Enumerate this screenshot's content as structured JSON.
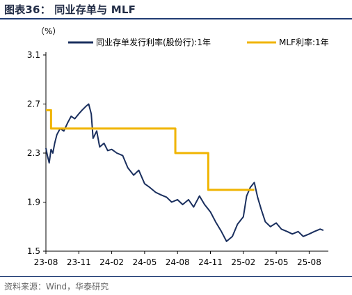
{
  "figure": {
    "title": "图表36： 同业存单与 MLF",
    "source": "资料来源：Wind，华泰研究"
  },
  "chart_data": {
    "type": "line",
    "unit_label": "（%）",
    "ylim": [
      1.5,
      3.1
    ],
    "yticks": [
      "3.1",
      "2.7",
      "2.3",
      "1.9",
      "1.5"
    ],
    "xticks": [
      "23-08",
      "23-11",
      "24-02",
      "24-05",
      "24-08",
      "24-11",
      "25-02",
      "25-05",
      "25-08"
    ],
    "legend_position": "top",
    "grid": false,
    "series": [
      {
        "name": "同业存单发行利率(股份行):1年",
        "color": "#1a2f5e",
        "style": "line",
        "values": [
          [
            "23-08",
            2.34
          ],
          [
            "23-08-05",
            2.28
          ],
          [
            "23-08-10",
            2.22
          ],
          [
            "23-08-15",
            2.33
          ],
          [
            "23-08-20",
            2.3
          ],
          [
            "23-08-25",
            2.38
          ],
          [
            "23-09-01",
            2.45
          ],
          [
            "23-09-10",
            2.5
          ],
          [
            "23-09-20",
            2.48
          ],
          [
            "23-10-01",
            2.55
          ],
          [
            "23-10-10",
            2.6
          ],
          [
            "23-10-20",
            2.58
          ],
          [
            "23-11",
            2.62
          ],
          [
            "23-11-10",
            2.65
          ],
          [
            "23-11-20",
            2.68
          ],
          [
            "23-11-28",
            2.7
          ],
          [
            "23-12-05",
            2.62
          ],
          [
            "23-12-10",
            2.42
          ],
          [
            "23-12-20",
            2.48
          ],
          [
            "23-12-28",
            2.35
          ],
          [
            "24-01-10",
            2.38
          ],
          [
            "24-01-20",
            2.32
          ],
          [
            "24-02",
            2.33
          ],
          [
            "24-02-15",
            2.3
          ],
          [
            "24-03-01",
            2.28
          ],
          [
            "24-03-15",
            2.18
          ],
          [
            "24-04-01",
            2.12
          ],
          [
            "24-04-15",
            2.16
          ],
          [
            "24-05",
            2.05
          ],
          [
            "24-05-15",
            2.02
          ],
          [
            "24-06-01",
            1.98
          ],
          [
            "24-06-15",
            1.96
          ],
          [
            "24-07-01",
            1.94
          ],
          [
            "24-07-15",
            1.9
          ],
          [
            "24-08",
            1.92
          ],
          [
            "24-08-15",
            1.88
          ],
          [
            "24-09-01",
            1.92
          ],
          [
            "24-09-15",
            1.86
          ],
          [
            "24-10-01",
            1.95
          ],
          [
            "24-10-15",
            1.88
          ],
          [
            "24-11",
            1.82
          ],
          [
            "24-11-15",
            1.74
          ],
          [
            "24-12-01",
            1.66
          ],
          [
            "24-12-15",
            1.58
          ],
          [
            "25-01-01",
            1.62
          ],
          [
            "25-01-15",
            1.72
          ],
          [
            "25-02",
            1.78
          ],
          [
            "25-02-10",
            1.95
          ],
          [
            "25-02-20",
            2.02
          ],
          [
            "25-03-01",
            2.06
          ],
          [
            "25-03-10",
            1.94
          ],
          [
            "25-03-20",
            1.84
          ],
          [
            "25-04-01",
            1.74
          ],
          [
            "25-04-15",
            1.7
          ],
          [
            "25-05",
            1.73
          ],
          [
            "25-05-15",
            1.68
          ],
          [
            "25-06-01",
            1.66
          ],
          [
            "25-06-15",
            1.64
          ],
          [
            "25-07-01",
            1.66
          ],
          [
            "25-07-15",
            1.62
          ],
          [
            "25-08",
            1.64
          ],
          [
            "25-08-15",
            1.66
          ],
          [
            "25-09-01",
            1.68
          ],
          [
            "25-09-10",
            1.67
          ]
        ]
      },
      {
        "name": "MLF利率:1年",
        "color": "#f0b400",
        "style": "step",
        "values": [
          [
            "23-08",
            2.65
          ],
          [
            "23-08-15",
            2.5
          ],
          [
            "24-07-25",
            2.3
          ],
          [
            "24-10-25",
            2.0
          ],
          [
            "25-03-01",
            2.0
          ]
        ]
      }
    ]
  }
}
